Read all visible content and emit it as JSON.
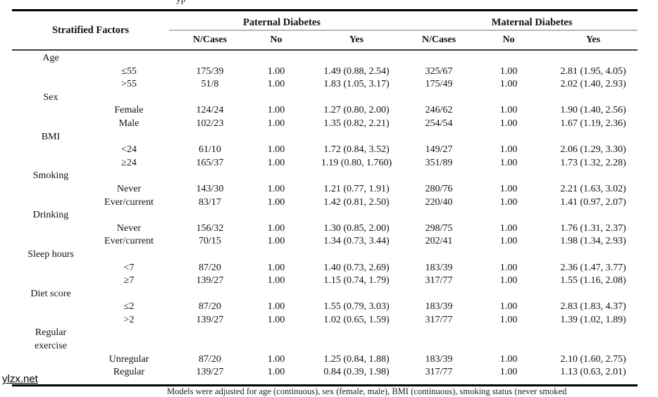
{
  "document": {
    "top_caption_fragment": "yp",
    "watermark": "ylzx.net",
    "footnote_fragment": "Models were adjusted for age (continuous), sex (female, male), BMI (continuous), smoking status (never smoked"
  },
  "table": {
    "header": {
      "stratified_factors": "Stratified Factors",
      "paternal_group": "Paternal Diabetes",
      "maternal_group": "Maternal Diabetes",
      "sub_headers": [
        "N/Cases",
        "No",
        "Yes",
        "N/Cases",
        "No",
        "Yes"
      ]
    },
    "sections": [
      {
        "factor_lines": [
          "Age"
        ],
        "rows": [
          {
            "level": "≤55",
            "paternal": {
              "n_cases": "175/39",
              "no": "1.00",
              "yes": "1.49 (0.88, 2.54)"
            },
            "maternal": {
              "n_cases": "325/67",
              "no": "1.00",
              "yes": "2.81 (1.95, 4.05)"
            }
          },
          {
            "level": ">55",
            "paternal": {
              "n_cases": "51/8",
              "no": "1.00",
              "yes": "1.83 (1.05, 3.17)"
            },
            "maternal": {
              "n_cases": "175/49",
              "no": "1.00",
              "yes": "2.02 (1.40, 2.93)"
            }
          }
        ]
      },
      {
        "factor_lines": [
          "Sex"
        ],
        "rows": [
          {
            "level": "Female",
            "paternal": {
              "n_cases": "124/24",
              "no": "1.00",
              "yes": "1.27 (0.80, 2.00)"
            },
            "maternal": {
              "n_cases": "246/62",
              "no": "1.00",
              "yes": "1.90 (1.40, 2.56)"
            }
          },
          {
            "level": "Male",
            "paternal": {
              "n_cases": "102/23",
              "no": "1.00",
              "yes": "1.35 (0.82, 2.21)"
            },
            "maternal": {
              "n_cases": "254/54",
              "no": "1.00",
              "yes": "1.67 (1.19, 2.36)"
            }
          }
        ]
      },
      {
        "factor_lines": [
          "BMI"
        ],
        "rows": [
          {
            "level": "<24",
            "paternal": {
              "n_cases": "61/10",
              "no": "1.00",
              "yes": "1.72 (0.84, 3.52)"
            },
            "maternal": {
              "n_cases": "149/27",
              "no": "1.00",
              "yes": "2.06 (1.29, 3.30)"
            }
          },
          {
            "level": "≥24",
            "paternal": {
              "n_cases": "165/37",
              "no": "1.00",
              "yes": "1.19 (0.80, 1.760)"
            },
            "maternal": {
              "n_cases": "351/89",
              "no": "1.00",
              "yes": "1.73 (1.32, 2.28)"
            }
          }
        ]
      },
      {
        "factor_lines": [
          "Smoking"
        ],
        "rows": [
          {
            "level": "Never",
            "paternal": {
              "n_cases": "143/30",
              "no": "1.00",
              "yes": "1.21 (0.77, 1.91)"
            },
            "maternal": {
              "n_cases": "280/76",
              "no": "1.00",
              "yes": "2.21 (1.63, 3.02)"
            }
          },
          {
            "level": "Ever/current",
            "paternal": {
              "n_cases": "83/17",
              "no": "1.00",
              "yes": "1.42 (0.81, 2.50)"
            },
            "maternal": {
              "n_cases": "220/40",
              "no": "1.00",
              "yes": "1.41 (0.97, 2.07)"
            }
          }
        ]
      },
      {
        "factor_lines": [
          "Drinking"
        ],
        "rows": [
          {
            "level": "Never",
            "paternal": {
              "n_cases": "156/32",
              "no": "1.00",
              "yes": "1.30 (0.85, 2.00)"
            },
            "maternal": {
              "n_cases": "298/75",
              "no": "1.00",
              "yes": "1.76 (1.31, 2.37)"
            }
          },
          {
            "level": "Ever/current",
            "paternal": {
              "n_cases": "70/15",
              "no": "1.00",
              "yes": "1.34 (0.73, 3.44)"
            },
            "maternal": {
              "n_cases": "202/41",
              "no": "1.00",
              "yes": "1.98 (1.34, 2.93)"
            }
          }
        ]
      },
      {
        "factor_lines": [
          "Sleep hours"
        ],
        "rows": [
          {
            "level": "<7",
            "paternal": {
              "n_cases": "87/20",
              "no": "1.00",
              "yes": "1.40 (0.73, 2.69)"
            },
            "maternal": {
              "n_cases": "183/39",
              "no": "1.00",
              "yes": "2.36 (1.47, 3.77)"
            }
          },
          {
            "level": "≥7",
            "paternal": {
              "n_cases": "139/27",
              "no": "1.00",
              "yes": "1.15 (0.74, 1.79)"
            },
            "maternal": {
              "n_cases": "317/77",
              "no": "1.00",
              "yes": "1.55 (1.16, 2.08)"
            }
          }
        ]
      },
      {
        "factor_lines": [
          "Diet score"
        ],
        "rows": [
          {
            "level": "≤2",
            "paternal": {
              "n_cases": "87/20",
              "no": "1.00",
              "yes": "1.55 (0.79, 3.03)"
            },
            "maternal": {
              "n_cases": "183/39",
              "no": "1.00",
              "yes": "2.83 (1.83, 4.37)"
            }
          },
          {
            "level": ">2",
            "paternal": {
              "n_cases": "139/27",
              "no": "1.00",
              "yes": "1.02 (0.65, 1.59)"
            },
            "maternal": {
              "n_cases": "317/77",
              "no": "1.00",
              "yes": "1.39 (1.02, 1.89)"
            }
          }
        ]
      },
      {
        "factor_lines": [
          "Regular",
          "exercise"
        ],
        "rows": [
          {
            "level": "Unregular",
            "paternal": {
              "n_cases": "87/20",
              "no": "1.00",
              "yes": "1.25 (0.84, 1.88)"
            },
            "maternal": {
              "n_cases": "183/39",
              "no": "1.00",
              "yes": "2.10 (1.60, 2.75)"
            }
          },
          {
            "level": "Regular",
            "paternal": {
              "n_cases": "139/27",
              "no": "1.00",
              "yes": "0.84 (0.39, 1.98)"
            },
            "maternal": {
              "n_cases": "317/77",
              "no": "1.00",
              "yes": "1.13 (0.63, 2.01)"
            }
          }
        ]
      }
    ]
  },
  "colors": {
    "rule_black": "#000000",
    "rule_gray": "#b9b9b9",
    "text": "#111111"
  }
}
